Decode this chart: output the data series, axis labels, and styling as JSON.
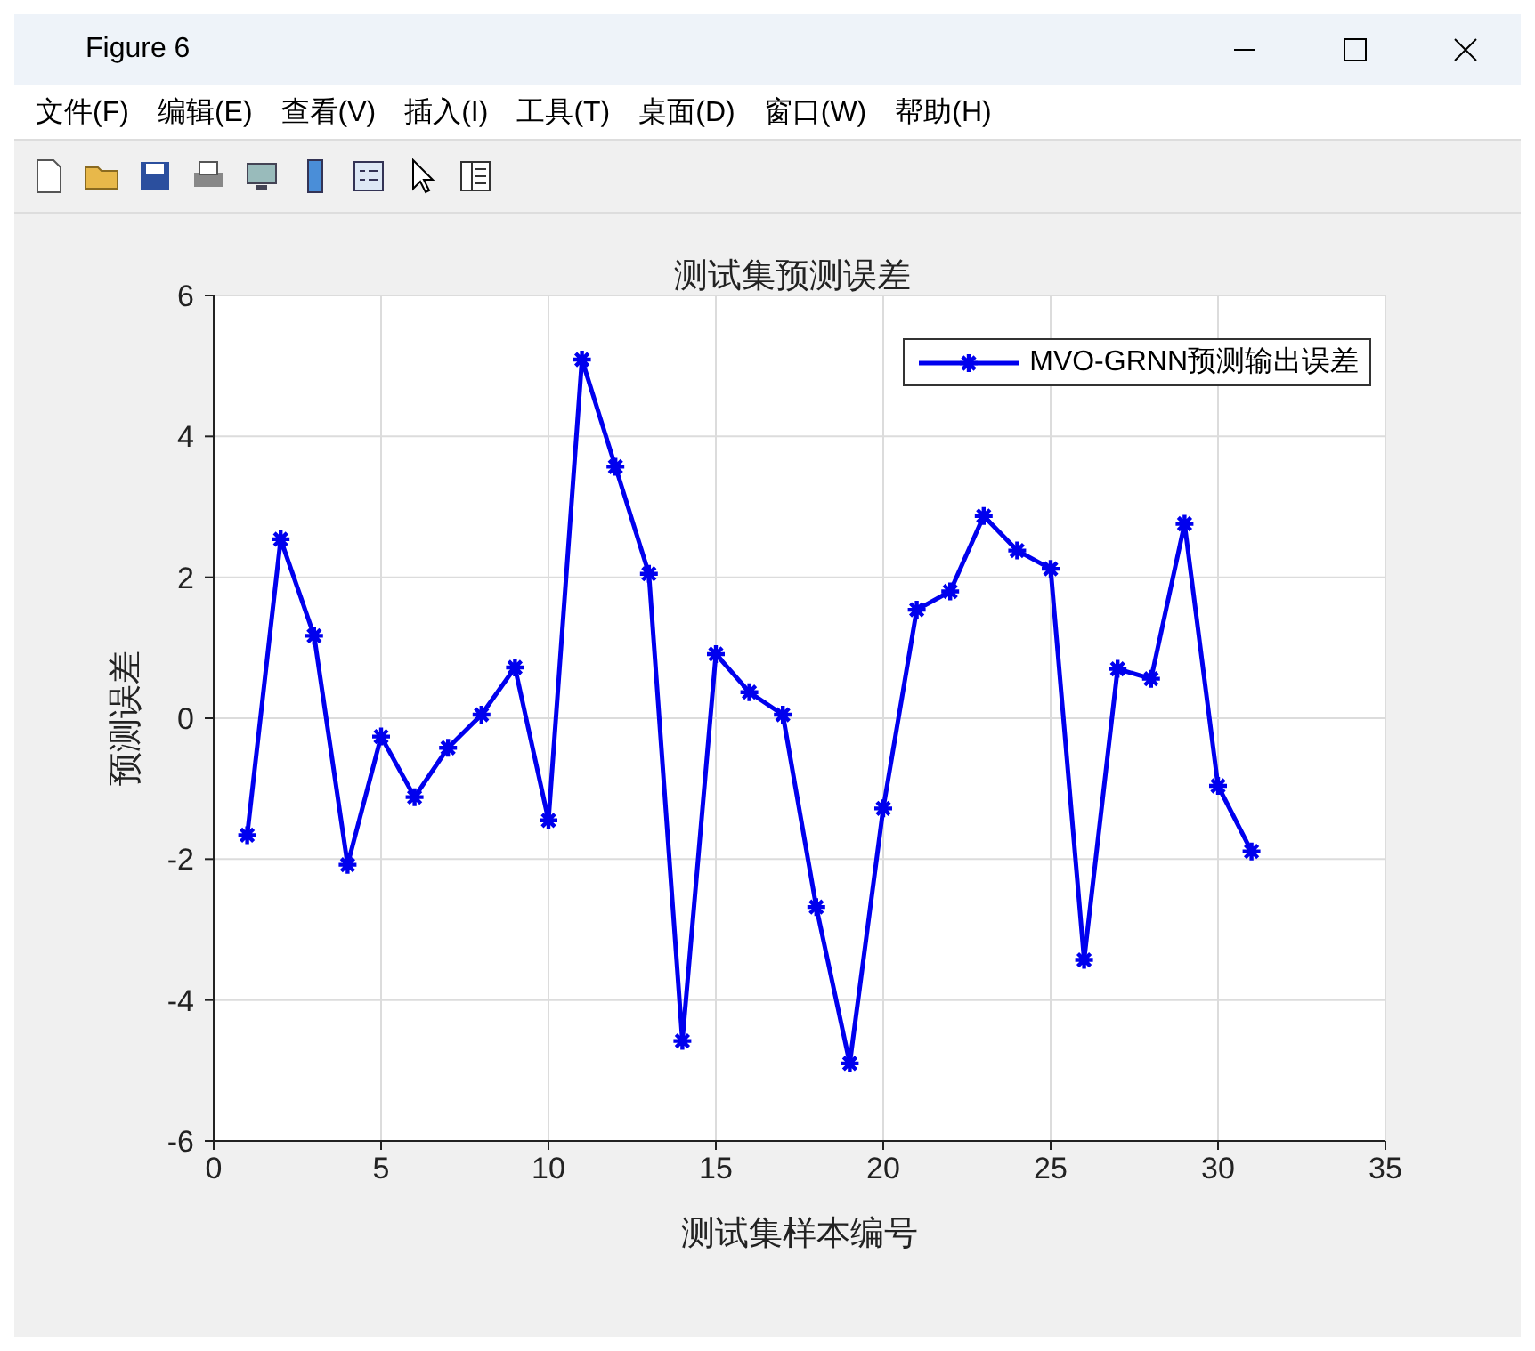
{
  "chart_data": {
    "type": "line",
    "title": "测试集预测误差",
    "xlabel": "测试集样本编号",
    "ylabel": "预测误差",
    "annotations": [
      "Figure 6",
      "文件(F)",
      "编辑(E)",
      "查看(V)",
      "插入(I)",
      "工具(T)",
      "桌面(D)",
      "窗口(W)",
      "帮助(H)"
    ],
    "x": [
      1,
      2,
      3,
      4,
      5,
      6,
      7,
      8,
      9,
      10,
      11,
      12,
      13,
      14,
      15,
      16,
      17,
      18,
      19,
      20,
      21,
      22,
      23,
      24,
      25,
      26,
      27,
      28,
      29,
      30,
      31
    ],
    "series": [
      {
        "name": "MVO-GRNN预测输出误差",
        "color": "#0000ee",
        "values": [
          -1.66,
          2.54,
          1.17,
          -2.08,
          -0.26,
          -1.12,
          -0.42,
          0.05,
          0.72,
          -1.45,
          5.09,
          3.57,
          2.05,
          -4.58,
          0.91,
          0.37,
          0.05,
          -2.68,
          -4.9,
          -1.28,
          1.54,
          1.8,
          2.87,
          2.38,
          2.12,
          -3.43,
          0.7,
          0.56,
          2.76,
          -0.96,
          -1.89
        ]
      }
    ],
    "xlim": [
      0,
      35
    ],
    "xticks": [
      0,
      5,
      10,
      15,
      20,
      25,
      30,
      35
    ],
    "ylim": [
      -6,
      6
    ],
    "yticks": [
      -6,
      -4,
      -2,
      0,
      2,
      4,
      6
    ],
    "grid": true,
    "legend": "top right",
    "marker": "cross",
    "line_style": "solid"
  }
}
